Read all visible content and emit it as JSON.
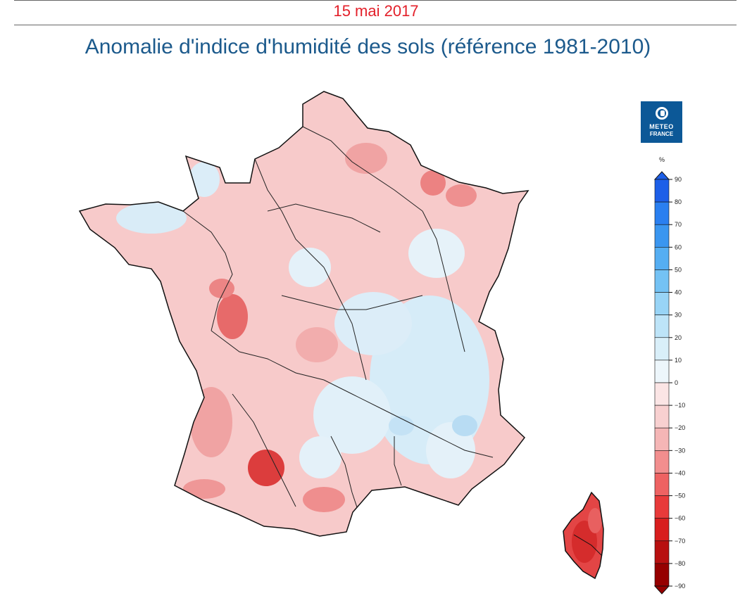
{
  "header": {
    "date": "15 mai 2017",
    "title": "Anomalie d'indice d'humidité des sols (référence 1981-2010)"
  },
  "logo": {
    "line1": "METEO",
    "line2": "FRANCE",
    "color": "#0c5897"
  },
  "legend": {
    "unit": "%",
    "ticks": [
      "90",
      "80",
      "70",
      "60",
      "50",
      "40",
      "30",
      "20",
      "10",
      "0",
      "−10",
      "−20",
      "−30",
      "−40",
      "−50",
      "−60",
      "−70",
      "−80",
      "−90"
    ],
    "colors": [
      "#1d5fe8",
      "#2a7ff0",
      "#3a96f0",
      "#55aef2",
      "#74c2f4",
      "#98d4f6",
      "#bde4f8",
      "#d9eff9",
      "#edf6fb",
      "#fbe5e5",
      "#f8d0d0",
      "#f5b6b6",
      "#f28e8e",
      "#ee6262",
      "#e83a3a",
      "#d81e1e",
      "#b81010",
      "#960000"
    ]
  },
  "map": {
    "regions": [
      "France",
      "Corsica"
    ],
    "base_anomaly_color": "#f6c6c6",
    "dry_hotspot_color": "#e44b4b",
    "wet_patch_color": "#d4ebf7"
  }
}
